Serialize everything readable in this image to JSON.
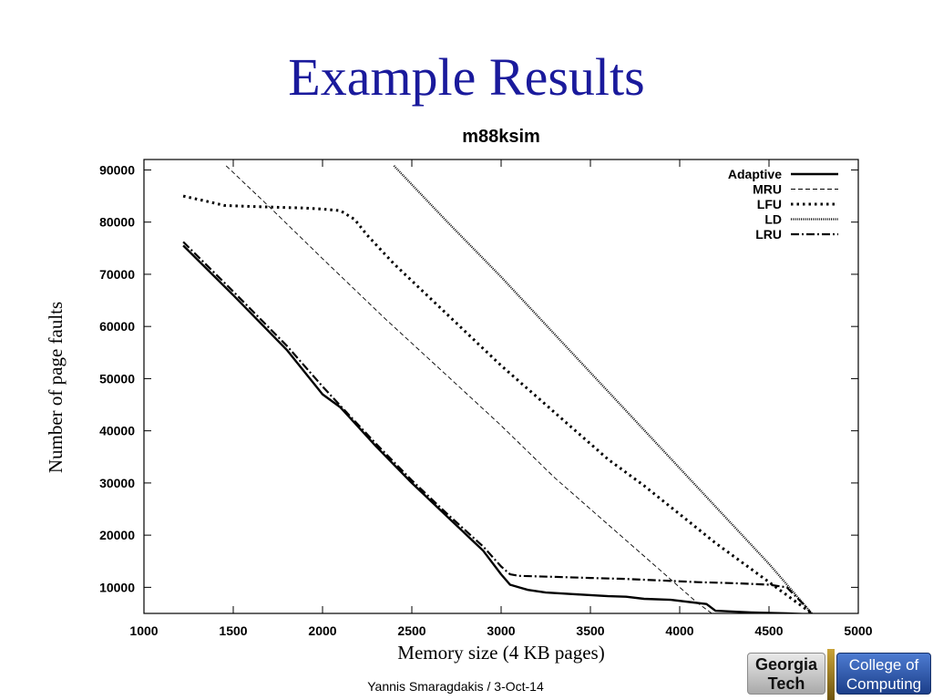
{
  "slide": {
    "title": "Example Results",
    "footer": "Yannis Smaragdakis / 3-Oct-14"
  },
  "logo": {
    "left_lines": [
      "Georgia",
      "Tech"
    ],
    "right_lines": [
      "College of",
      "Computing"
    ]
  },
  "chart_data": {
    "type": "line",
    "title": "m88ksim",
    "xlabel": "Memory size (4 KB pages)",
    "ylabel": "Number of page faults",
    "xlim": [
      1000,
      5000
    ],
    "ylim": [
      5000,
      92000
    ],
    "xticks": [
      1000,
      1500,
      2000,
      2500,
      3000,
      3500,
      4000,
      4500,
      5000
    ],
    "yticks": [
      10000,
      20000,
      30000,
      40000,
      50000,
      60000,
      70000,
      80000,
      90000
    ],
    "grid": false,
    "legend_position": "top-right",
    "series": [
      {
        "name": "Adaptive",
        "style": "solid-thick",
        "color": "#000000",
        "x": [
          1220,
          1500,
          1800,
          2000,
          2100,
          2300,
          2500,
          2700,
          2900,
          3000,
          3050,
          3100,
          3150,
          3250,
          3400,
          3600,
          3700,
          3800,
          3950,
          4150,
          4200,
          4400,
          4600,
          4740
        ],
        "y": [
          75500,
          66000,
          55500,
          47000,
          44500,
          37000,
          30000,
          23500,
          17000,
          12500,
          10500,
          10000,
          9500,
          9000,
          8700,
          8300,
          8200,
          7800,
          7600,
          6800,
          5500,
          5200,
          5000,
          4800
        ]
      },
      {
        "name": "MRU",
        "style": "dashed-thin",
        "color": "#000000",
        "x": [
          1460,
          1700,
          2000,
          2350,
          2700,
          3000,
          3300,
          3600,
          3900,
          4100,
          4180
        ],
        "y": [
          90800,
          83000,
          73000,
          61500,
          50500,
          41000,
          31000,
          22000,
          13000,
          7000,
          5000
        ]
      },
      {
        "name": "LFU",
        "style": "dotted-thick",
        "color": "#000000",
        "x": [
          1220,
          1350,
          1450,
          1600,
          1800,
          1900,
          2000,
          2100,
          2180,
          2250,
          2400,
          2600,
          2800,
          3000,
          3200,
          3400,
          3600,
          3800,
          4000,
          4200,
          4400,
          4600,
          4740
        ],
        "y": [
          85000,
          84000,
          83200,
          83000,
          82800,
          82700,
          82500,
          82200,
          80500,
          77500,
          72000,
          65500,
          59000,
          52500,
          46500,
          40500,
          34500,
          29500,
          24000,
          18500,
          13500,
          8500,
          5000
        ]
      },
      {
        "name": "LD",
        "style": "dotted-dense",
        "color": "#000000",
        "x": [
          2400,
          2700,
          3000,
          3300,
          3600,
          3900,
          4200,
          4500,
          4740
        ],
        "y": [
          90800,
          80000,
          69500,
          58500,
          47500,
          36500,
          25500,
          14500,
          5000
        ]
      },
      {
        "name": "LRU",
        "style": "dashdot",
        "color": "#000000",
        "x": [
          1220,
          1500,
          1800,
          2000,
          2100,
          2300,
          2500,
          2700,
          2900,
          3000,
          3050,
          3100,
          3300,
          3500,
          3700,
          3900,
          4100,
          4300,
          4500,
          4600,
          4700,
          4740
        ],
        "y": [
          76200,
          66700,
          56300,
          48500,
          44800,
          37500,
          30500,
          24000,
          17800,
          14000,
          12500,
          12200,
          12000,
          11800,
          11600,
          11300,
          11000,
          10800,
          10500,
          10000,
          6500,
          4800
        ]
      }
    ]
  }
}
